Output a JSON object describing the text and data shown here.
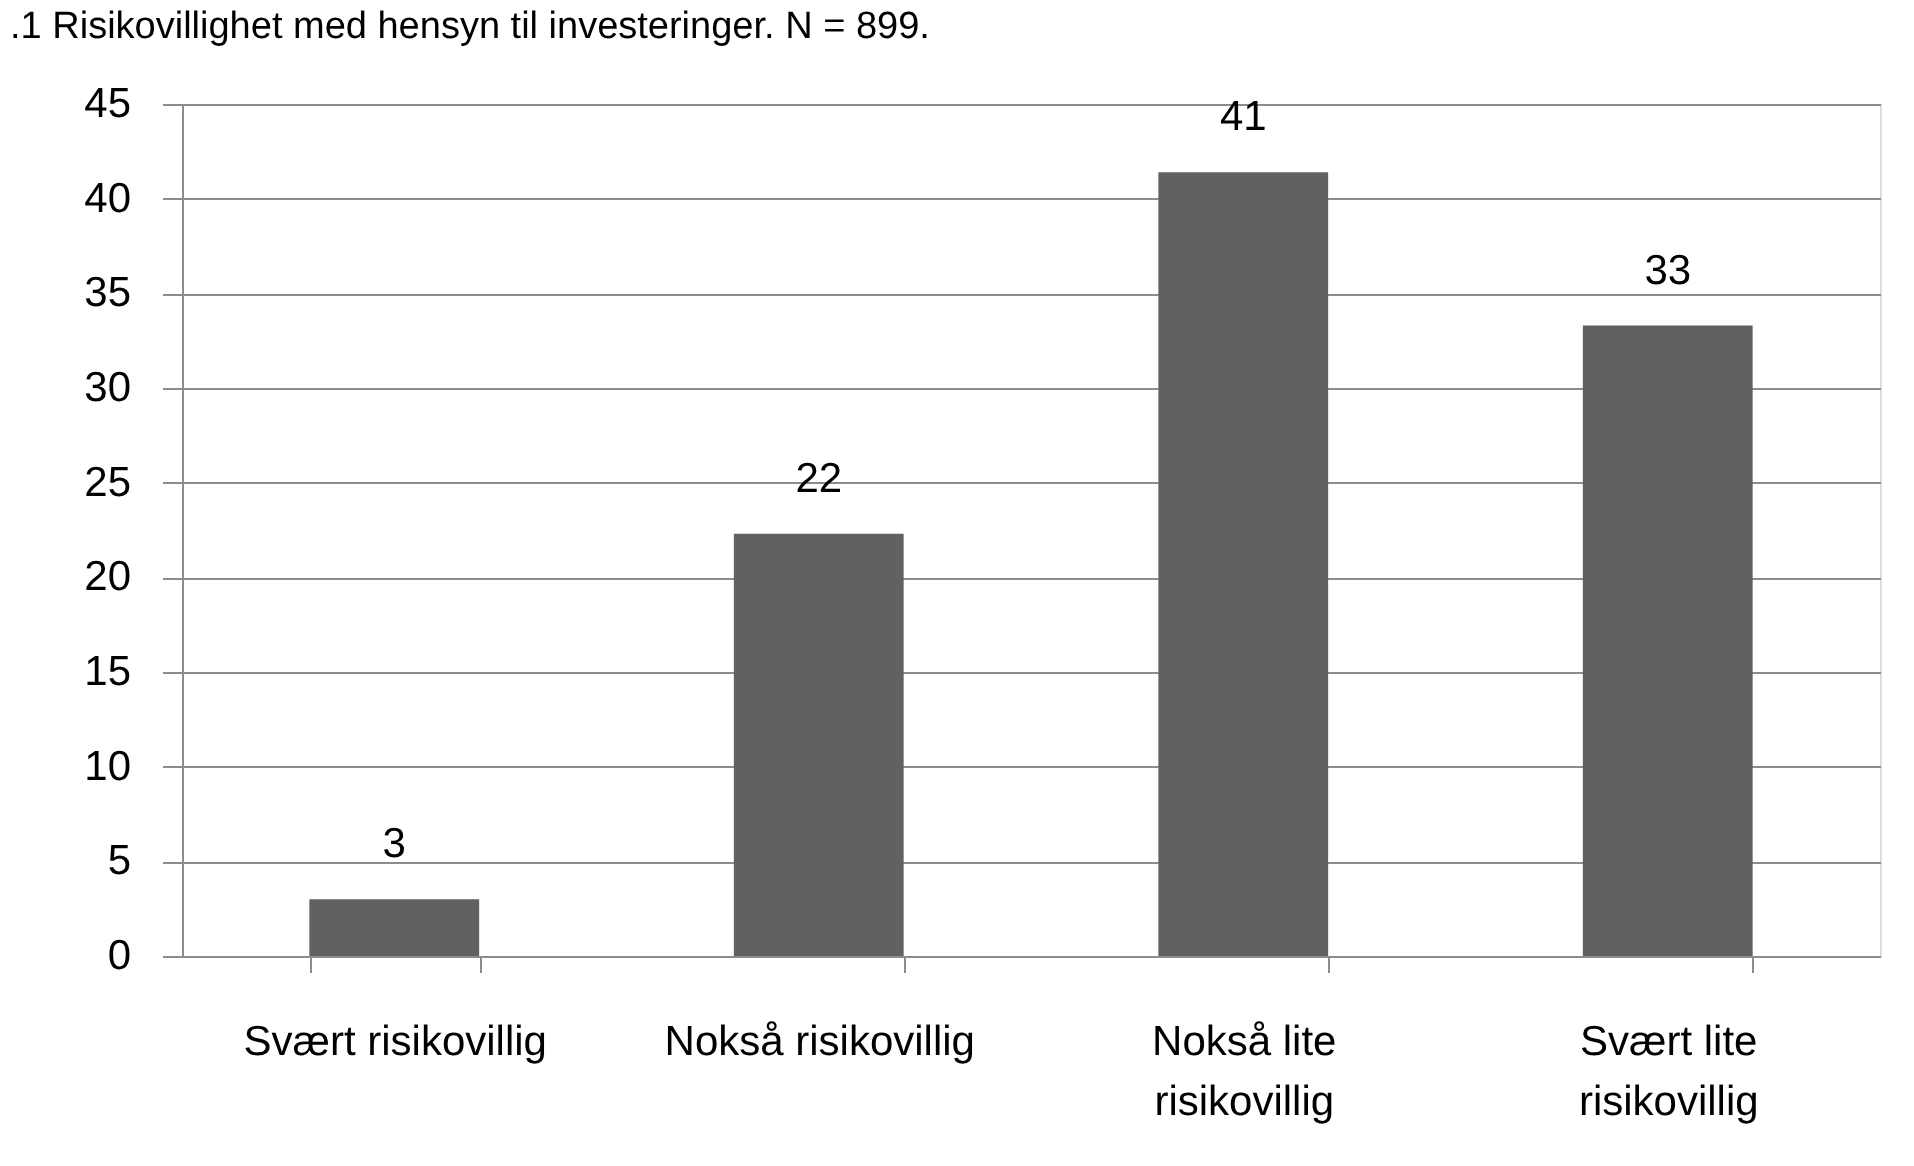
{
  "chart_data": {
    "type": "bar",
    "title": ".1 Risikovillighet med hensyn til investeringer. N = 899.",
    "categories": [
      "Svært risikovillig",
      "Nokså risikovillig",
      "Nokså lite risikovillig",
      "Svært lite risikovillig"
    ],
    "values": [
      3.0,
      22.3,
      41.4,
      33.3
    ],
    "value_labels": [
      "3",
      "22",
      "41",
      "33"
    ],
    "color": "#616161",
    "ylim": [
      0,
      45
    ],
    "yticks": [
      0,
      5,
      10,
      15,
      20,
      25,
      30,
      35,
      40,
      45
    ],
    "grid": "y"
  }
}
